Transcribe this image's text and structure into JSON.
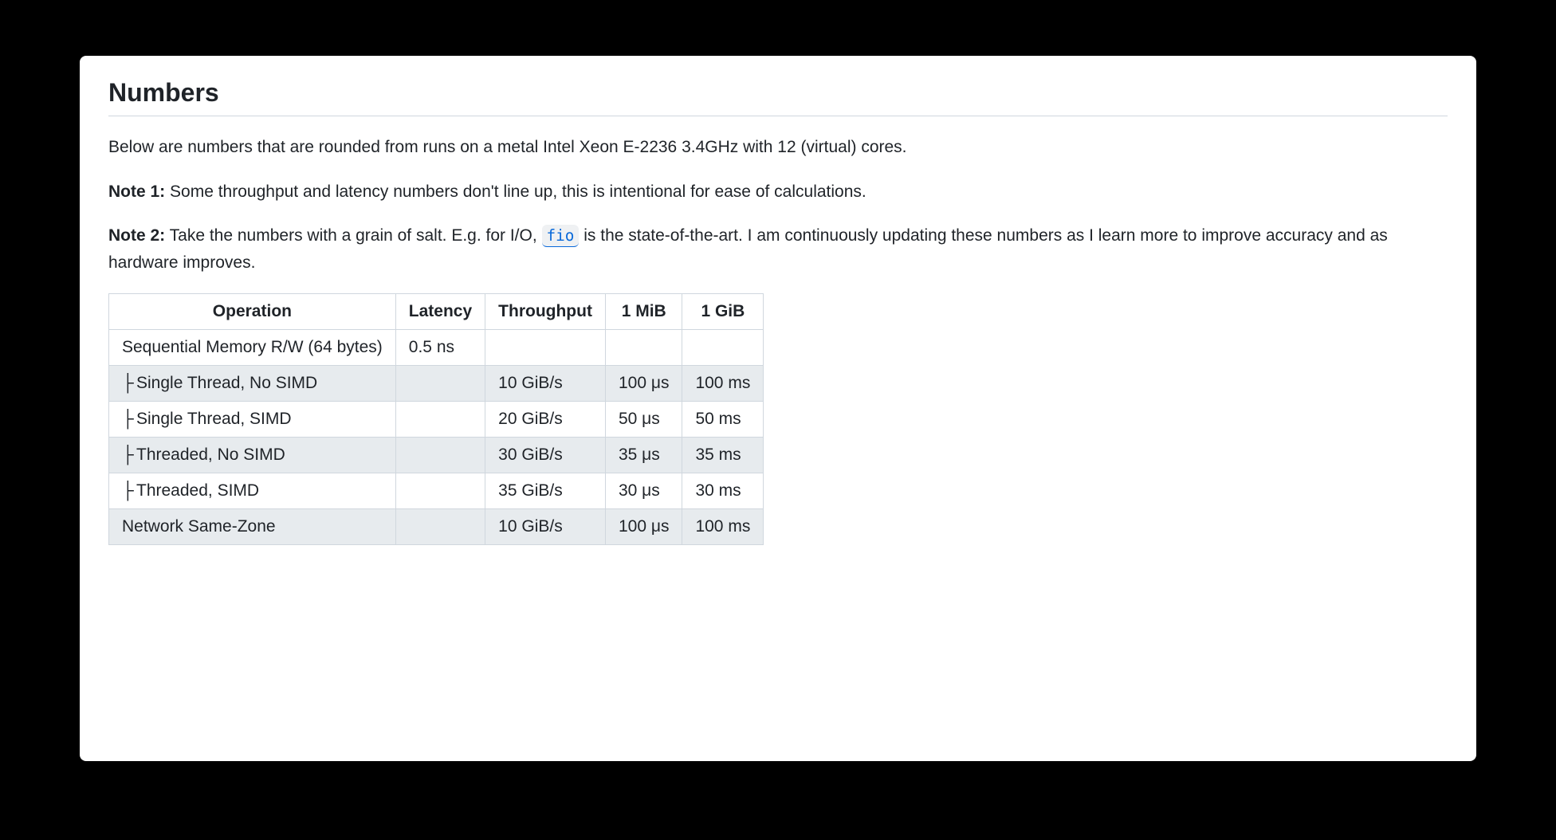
{
  "heading": "Numbers",
  "intro": "Below are numbers that are rounded from runs on a metal Intel Xeon E-2236 3.4GHz with 12 (virtual) cores.",
  "note1_label": "Note 1:",
  "note1_text": " Some throughput and latency numbers don't line up, this is intentional for ease of calculations.",
  "note2_label": "Note 2:",
  "note2_text_before": " Take the numbers with a grain of salt. E.g. for I/O, ",
  "note2_code": "fio",
  "note2_text_after": " is the state-of-the-art. I am continuously updating these numbers as I learn more to improve accuracy and as hardware improves.",
  "table": {
    "columns": [
      "Operation",
      "Latency",
      "Throughput",
      "1 MiB",
      "1 GiB"
    ],
    "rows": [
      {
        "cells": [
          "Sequential Memory R/W (64 bytes)",
          "0.5 ns",
          "",
          "",
          ""
        ],
        "alt": false,
        "indent": false
      },
      {
        "cells": [
          "Single Thread, No SIMD",
          "",
          "10 GiB/s",
          "100 μs",
          "100 ms"
        ],
        "alt": true,
        "indent": true
      },
      {
        "cells": [
          "Single Thread, SIMD",
          "",
          "20 GiB/s",
          "50 μs",
          "50 ms"
        ],
        "alt": false,
        "indent": true
      },
      {
        "cells": [
          "Threaded, No SIMD",
          "",
          "30 GiB/s",
          "35 μs",
          "35 ms"
        ],
        "alt": true,
        "indent": true
      },
      {
        "cells": [
          "Threaded, SIMD",
          "",
          "35 GiB/s",
          "30 μs",
          "30 ms"
        ],
        "alt": false,
        "indent": true
      },
      {
        "cells": [
          "Network Same-Zone",
          "",
          "10 GiB/s",
          "100 μs",
          "100 ms"
        ],
        "alt": true,
        "indent": false
      }
    ],
    "border_color": "#d0d7de",
    "alt_row_color": "#e7ebee",
    "row_color": "#ffffff",
    "header_font_weight": 600
  },
  "colors": {
    "page_background": "#000000",
    "card_background": "#ffffff",
    "text": "#1f2328",
    "link": "#0969da",
    "code_background": "#eff1f3",
    "divider": "#d0d7de"
  },
  "typography": {
    "heading_fontsize": 32,
    "body_fontsize": 21,
    "font_family": "-apple-system, BlinkMacSystemFont, Segoe UI, Helvetica, Arial, sans-serif",
    "code_font_family": "ui-monospace, SFMono-Regular, SF Mono, Menlo, Consolas, monospace"
  },
  "tree_glyph": "├"
}
